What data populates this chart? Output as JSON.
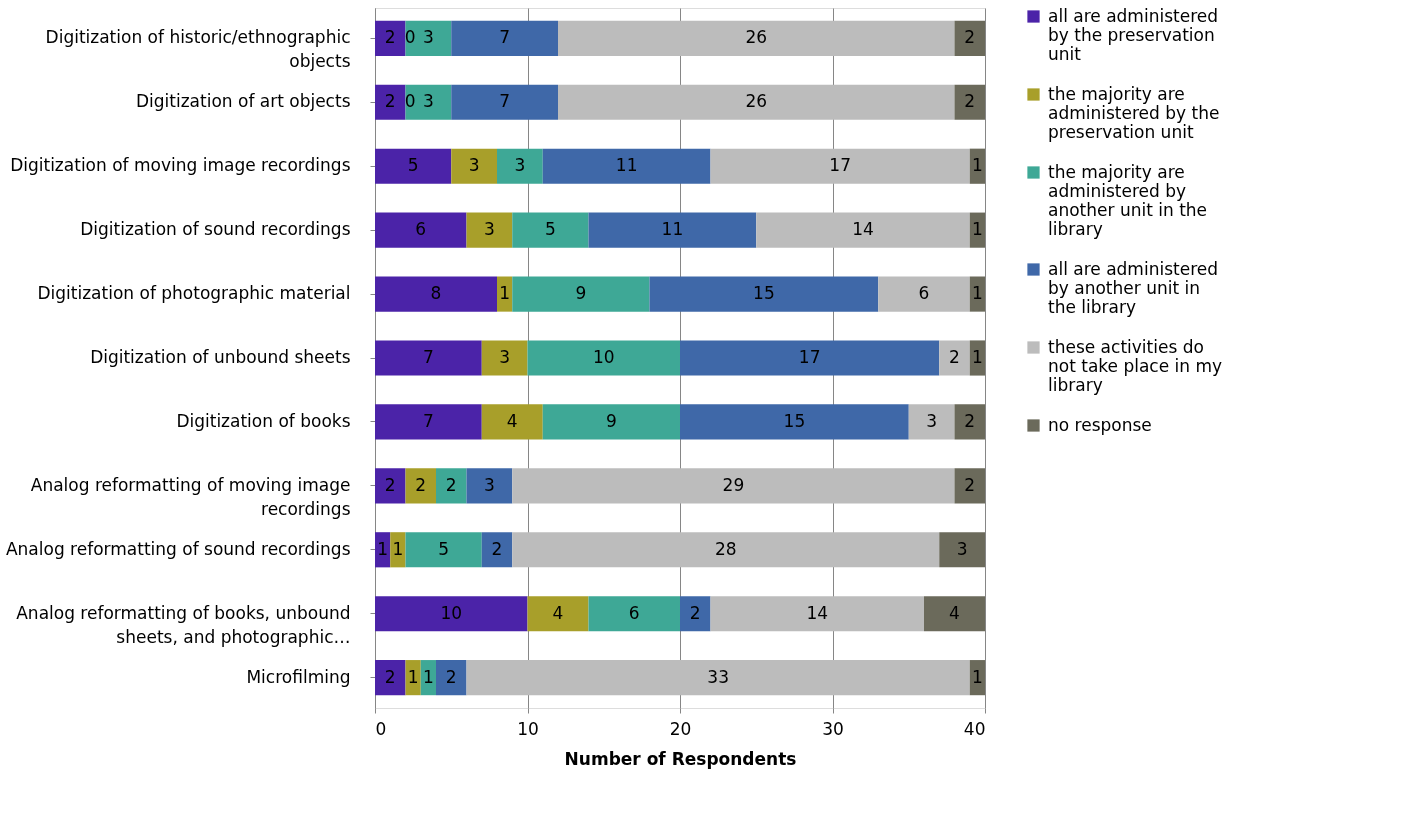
{
  "chart_data": {
    "type": "bar",
    "orientation": "horizontal",
    "stacked": true,
    "xlabel": "Number of Respondents",
    "categories": [
      "Digitization of historic/ethnographic objects",
      "Digitization of art objects",
      "Digitization of moving image recordings",
      "Digitization of sound recordings",
      "Digitization of photographic material",
      "Digitization of unbound sheets",
      "Digitization of books",
      "Analog reformatting of moving image recordings",
      "Analog reformatting of sound recordings",
      "Analog reformatting of books, unbound sheets, and photographic…",
      "Microfilming"
    ],
    "series": [
      {
        "name": "all are administered by the preservation unit",
        "color": "#4b23a8",
        "values": [
          2,
          2,
          5,
          6,
          8,
          7,
          7,
          2,
          1,
          10,
          2
        ],
        "value_labels": [
          "2",
          "2",
          "5",
          "6",
          "8",
          "7",
          "7",
          "2",
          "1",
          "10",
          "2"
        ]
      },
      {
        "name": "the majority are administered by the preservation unit",
        "color": "#a89f2a",
        "values": [
          0,
          0,
          3,
          3,
          1,
          3,
          4,
          2,
          1,
          4,
          1
        ],
        "value_labels": [
          null,
          null,
          "3",
          "3",
          "1",
          "3",
          "4",
          "2",
          "1",
          "4",
          "1"
        ]
      },
      {
        "name": "the majority are administered by another unit in the library",
        "color": "#3ea896",
        "values": [
          3,
          3,
          3,
          5,
          9,
          10,
          9,
          2,
          5,
          6,
          1
        ],
        "value_labels": [
          "3",
          "3",
          "3",
          "5",
          "9",
          "10",
          "9",
          "2",
          "5",
          "6",
          "1"
        ]
      },
      {
        "name": "all are administered by another unit in the library",
        "color": "#3f68a8",
        "values": [
          7,
          7,
          11,
          11,
          15,
          17,
          15,
          3,
          2,
          2,
          2
        ],
        "value_labels": [
          "7",
          "7",
          "11",
          "11",
          "15",
          "17",
          "15",
          "3",
          "2",
          "2",
          "2"
        ]
      },
      {
        "name": "these activities do not take place in my library",
        "color": "#bcbcbc",
        "values": [
          26,
          26,
          17,
          14,
          6,
          2,
          3,
          29,
          28,
          14,
          33
        ],
        "value_labels": [
          "26",
          "26",
          "17",
          "14",
          "6",
          "2",
          "3",
          "29",
          "28",
          "14",
          "33"
        ]
      },
      {
        "name": "no response",
        "color": "#6b6a5b",
        "values": [
          2,
          2,
          1,
          1,
          1,
          1,
          2,
          2,
          3,
          4,
          1
        ],
        "value_labels": [
          "2",
          "2",
          "1",
          "1",
          "1",
          "1",
          "2",
          "2",
          "3",
          "4",
          "1"
        ]
      }
    ],
    "annotations": [
      {
        "text": "0",
        "x": 2.3,
        "y": "Digitization of historic/ethnographic objects"
      },
      {
        "text": "0",
        "x": 2.3,
        "y": "Digitization of art objects"
      }
    ],
    "xlim": [
      0,
      40
    ],
    "xticks": [
      0,
      10,
      20,
      30,
      40
    ],
    "grid": "x",
    "legend": "right"
  }
}
